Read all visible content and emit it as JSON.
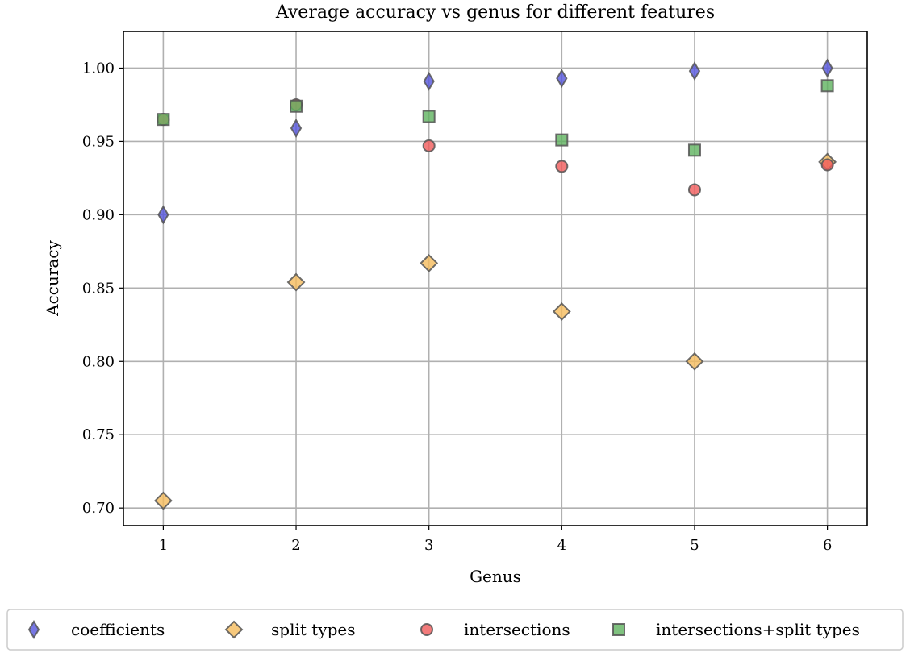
{
  "chart_data": {
    "type": "scatter",
    "title": "Average accuracy vs genus for different features",
    "xlabel": "Genus",
    "ylabel": "Accuracy",
    "x": [
      1,
      2,
      3,
      4,
      5,
      6
    ],
    "xticks": [
      "1",
      "2",
      "3",
      "4",
      "5",
      "6"
    ],
    "yticks": [
      "0.70",
      "0.75",
      "0.80",
      "0.85",
      "0.90",
      "0.95",
      "1.00"
    ],
    "ytick_values": [
      0.7,
      0.75,
      0.8,
      0.85,
      0.9,
      0.95,
      1.0
    ],
    "xlim": [
      0.7,
      6.3
    ],
    "ylim": [
      0.688,
      1.025
    ],
    "grid": true,
    "legend_position": "bottom",
    "series": [
      {
        "name": "coefficients",
        "marker": "thin_diamond",
        "color": "#5555dd",
        "values": [
          0.9,
          0.959,
          0.991,
          0.993,
          0.998,
          1.0
        ]
      },
      {
        "name": "split types",
        "marker": "diamond",
        "color": "#f5bc5c",
        "values": [
          0.705,
          0.854,
          0.867,
          0.834,
          0.8,
          0.936
        ]
      },
      {
        "name": "intersections",
        "marker": "circle",
        "color": "#f05a5a",
        "values": [
          0.965,
          0.975,
          0.947,
          0.933,
          0.917,
          0.934
        ]
      },
      {
        "name": "intersections+split types",
        "marker": "square",
        "color": "#5fb35f",
        "values": [
          0.965,
          0.974,
          0.967,
          0.951,
          0.944,
          0.988
        ]
      }
    ]
  }
}
